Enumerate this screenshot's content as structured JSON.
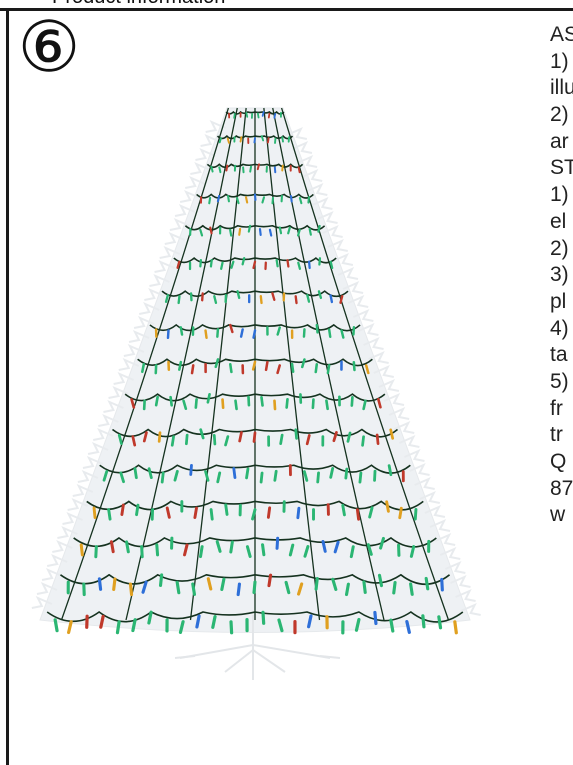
{
  "page": {
    "cut_header_text": "Product information"
  },
  "step": {
    "number": "⑥"
  },
  "instructions": {
    "lines": [
      "AS",
      "1)",
      "illu",
      "2)",
      "ar",
      "ST",
      "1)",
      "el",
      "2)",
      "3)",
      "pl",
      "4)",
      "ta",
      "5)",
      "fr",
      "tr",
      "Q",
      "87",
      "w"
    ]
  },
  "colors": {
    "frame": "#1a1a1a",
    "wire": "#15321f",
    "bulb_green": "#2bb673",
    "bulb_red": "#c0392b",
    "bulb_blue": "#2e6fd8",
    "bulb_amber": "#e0a020",
    "foliage": "#eef1f4"
  }
}
